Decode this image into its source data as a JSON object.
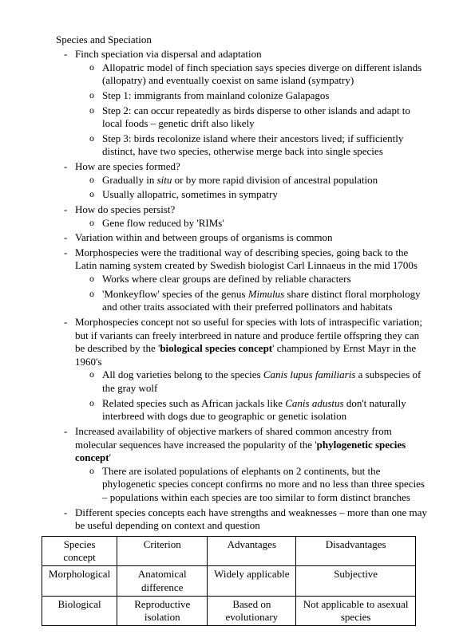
{
  "title": "Species and Speciation",
  "bullets": [
    {
      "text": "Finch speciation via dispersal and adaptation",
      "sub": [
        {
          "text": "Allopatric model of finch speciation says species diverge on different islands (allopatry) and eventually coexist on same island (sympatry)"
        },
        {
          "text": "Step 1: immigrants from mainland colonize Galapagos"
        },
        {
          "text": "Step 2: can occur repeatedly as birds disperse to other islands and adapt to local foods – genetic drift also likely"
        },
        {
          "text": "Step 3: birds recolonize island where their ancestors lived; if sufficiently distinct, have two species, otherwise merge back into single species"
        }
      ]
    },
    {
      "text": "How are species formed?",
      "sub": [
        {
          "html": "Gradually in <em>situ</em> or by more rapid division of ancestral population"
        },
        {
          "text": "Usually allopatric, sometimes in sympatry"
        }
      ]
    },
    {
      "text": "How do species persist?",
      "sub": [
        {
          "text": "Gene flow reduced by 'RIMs'"
        }
      ]
    },
    {
      "text": "Variation within and between groups of organisms is common"
    },
    {
      "text": "Morphospecies were the traditional way of describing species, going back to the Latin naming system created by Swedish biologist Carl Linnaeus in the mid 1700s",
      "sub": [
        {
          "text": "Works where clear groups are defined by reliable characters"
        },
        {
          "html": "'Monkeyflow' species of the genus <em>Mimulus</em> share distinct floral morphology and other traits associated with their preferred pollinators and habitats"
        }
      ]
    },
    {
      "html": "Morphospecies concept not so useful for species with lots of intraspecific variation; but if variants can freely interbreed in nature and produce fertile offspring they can be described by the '<strong>biological species concept</strong>' championed by Ernst Mayr in the 1960's",
      "sub": [
        {
          "html": "All dog varieties belong to the species <em>Canis lupus familiaris</em> a subspecies of the gray wolf"
        },
        {
          "html": "Related species such as African jackals like <em>Canis adustus</em> don't naturally interbreed with dogs due to geographic or genetic isolation"
        }
      ]
    },
    {
      "html": "Increased availability of objective markers of shared common ancestry from molecular sequences have increased the popularity of the '<strong>phylogenetic species concept</strong>'",
      "sub": [
        {
          "text": "There are isolated populations of elephants on 2 continents, but the phylogenetic species concept confirms no more and no less than three species – populations within each species are too similar to form distinct branches"
        }
      ]
    },
    {
      "text": "Different species concepts each have strengths and weaknesses – more than one may be useful depending on context and question"
    }
  ],
  "table": {
    "columns": [
      "Species concept",
      "Criterion",
      "Advantages",
      "Disadvantages"
    ],
    "rows": [
      [
        "Morphological",
        "Anatomical difference",
        "Widely applicable",
        "Subjective"
      ],
      [
        "Biological",
        "Reproductive isolation",
        "Based on evolutionary",
        "Not applicable to asexual species"
      ]
    ]
  }
}
